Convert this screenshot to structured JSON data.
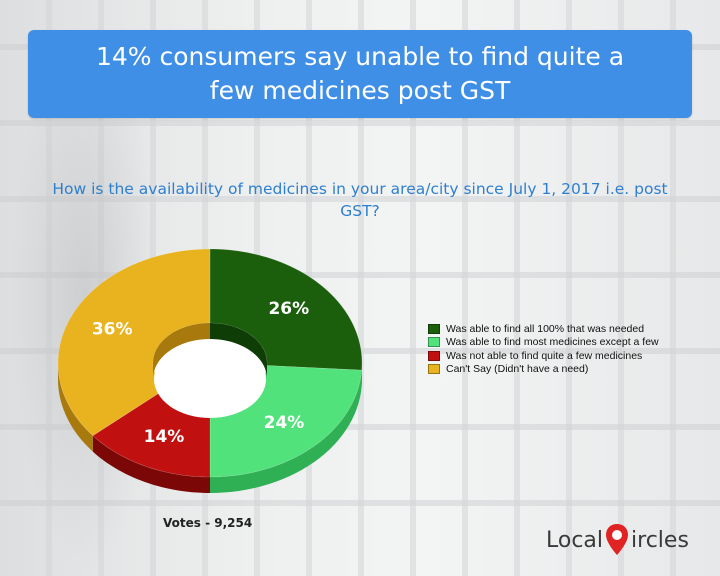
{
  "banner": {
    "title": "14% consumers say unable to find quite a few medicines post GST"
  },
  "question": "How is the availability of medicines in your area/city since July 1, 2017 i.e. post GST?",
  "votes_text": "Votes - 9,254",
  "logo": {
    "part1": "Local",
    "part2": "ircles"
  },
  "colors": {
    "banner": "#3f8fe6",
    "question": "#2f7fd0"
  },
  "chart_data": {
    "type": "pie",
    "variant": "3d-donut",
    "title": "How is the availability of medicines in your area/city since July 1, 2017 i.e. post GST?",
    "categories": [
      "Was able to find all 100% that was needed",
      "Was able to find most medicines except a few",
      "Was not able to find quite a few medicines",
      "Can't Say (Didn't have a need)"
    ],
    "values": [
      26,
      24,
      14,
      36
    ],
    "labels": [
      "26%",
      "24%",
      "14%",
      "36%"
    ],
    "colors": [
      "#1b5e0c",
      "#52e27b",
      "#c01010",
      "#e9b21f"
    ],
    "side_colors": [
      "#0f3d06",
      "#2fb055",
      "#7c0707",
      "#a87a0d"
    ],
    "legend_position": "right"
  }
}
